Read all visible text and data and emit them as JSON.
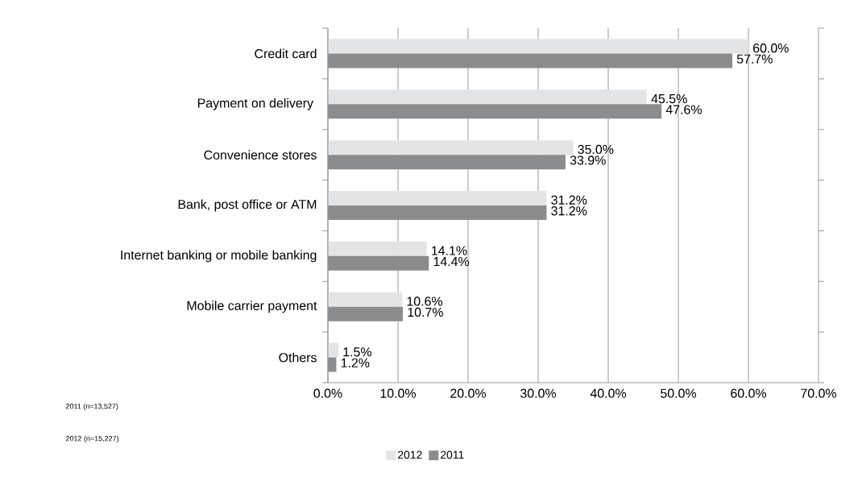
{
  "chart_data": {
    "type": "bar",
    "orientation": "horizontal",
    "categories": [
      "Credit card",
      "Payment on delivery ",
      "Convenience stores",
      "Bank, post office or ATM",
      "Internet banking or mobile banking",
      "Mobile carrier payment",
      "Others"
    ],
    "series": [
      {
        "name": "2012",
        "color": "#e3e4e5",
        "values": [
          60.0,
          45.5,
          35.0,
          31.2,
          14.1,
          10.6,
          1.5
        ],
        "value_labels": [
          "60.0%",
          "45.5%",
          "35.0%",
          "31.2%",
          "14.1%",
          "10.6%",
          "1.5%"
        ]
      },
      {
        "name": "2011",
        "color": "#8b8c8e",
        "values": [
          57.7,
          47.6,
          33.9,
          31.2,
          14.4,
          10.7,
          1.2
        ],
        "value_labels": [
          "57.7%",
          "47.6%",
          "33.9%",
          "31.2%",
          "14.4%",
          "10.7%",
          "1.2%"
        ]
      }
    ],
    "xlim": [
      0,
      70
    ],
    "xticks": [
      {
        "value": 0,
        "label": "0.0%"
      },
      {
        "value": 10,
        "label": "10.0%"
      },
      {
        "value": 20,
        "label": "20.0%"
      },
      {
        "value": 30,
        "label": "30.0%"
      },
      {
        "value": 40,
        "label": "40.0%"
      },
      {
        "value": 50,
        "label": "50.0%"
      },
      {
        "value": 60,
        "label": "60.0%"
      },
      {
        "value": 70,
        "label": "70.0%"
      }
    ],
    "grid": "x",
    "legend": "bottom",
    "annotations": [
      "2011    (n=13,527)",
      "2012    (n=15,227)"
    ]
  }
}
